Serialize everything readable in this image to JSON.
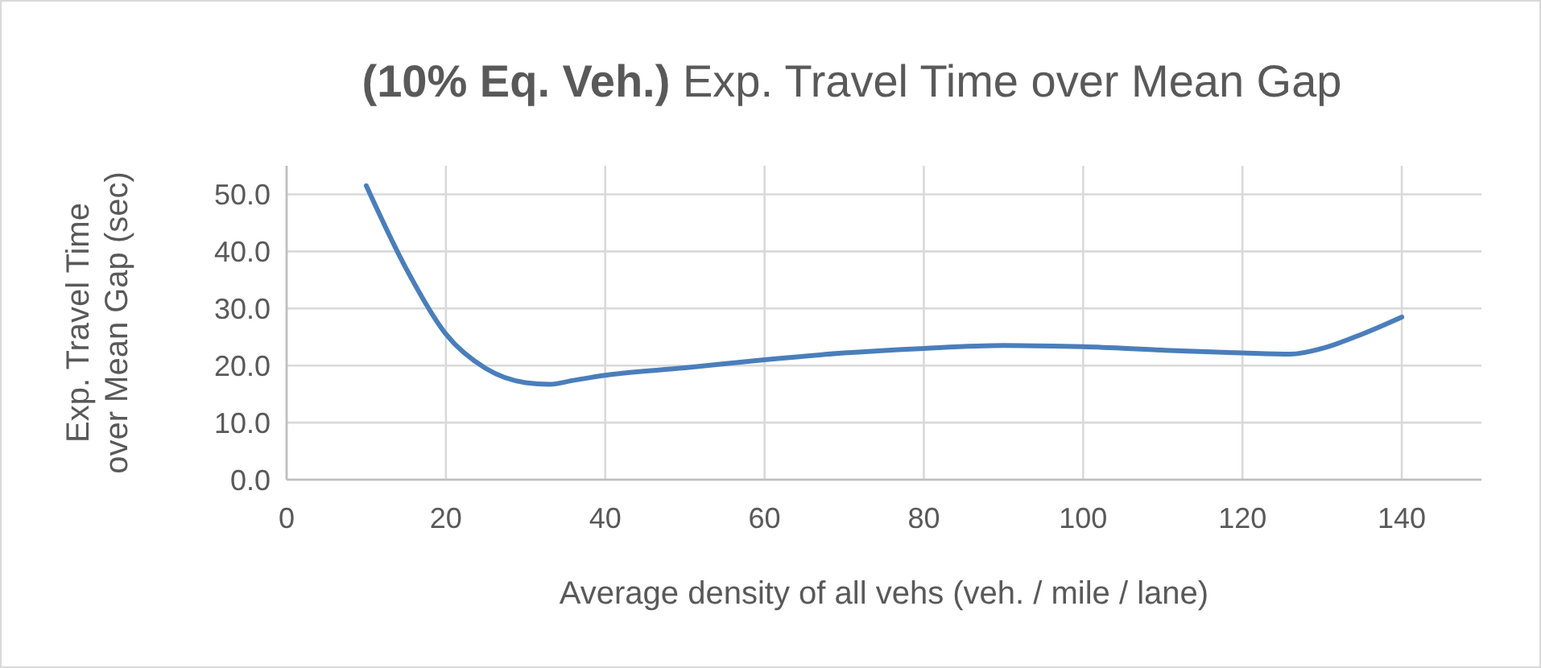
{
  "chart_data": {
    "type": "line",
    "title": "(10% Eq. Veh.) Exp. Travel Time over Mean Gap",
    "xlabel": "Average density of all vehs (veh. / mile / lane)",
    "ylabel": "Exp. Travel Time\nover Mean Gap (sec)",
    "series": [
      {
        "color": "#4a7ebb",
        "x": [
          10,
          15,
          20,
          25,
          30,
          33,
          36,
          40,
          50,
          60,
          70,
          80,
          90,
          100,
          110,
          120,
          126,
          130,
          135,
          140
        ],
        "values": [
          51.5,
          37,
          25.5,
          19.5,
          17,
          16.7,
          17.4,
          18.3,
          19.6,
          21,
          22.2,
          23,
          23.5,
          23.3,
          22.7,
          22.2,
          22,
          23,
          25.5,
          28.5
        ]
      }
    ],
    "xlim": [
      0,
      150
    ],
    "ylim": [
      0,
      55
    ],
    "xticks": [
      0,
      20,
      40,
      60,
      80,
      100,
      120,
      140
    ],
    "yticks": [
      {
        "value": 0,
        "label": "0.0"
      },
      {
        "value": 10,
        "label": "10.0"
      },
      {
        "value": 20,
        "label": "20.0"
      },
      {
        "value": 30,
        "label": "30.0"
      },
      {
        "value": 40,
        "label": "40.0"
      },
      {
        "value": 50,
        "label": "50.0"
      }
    ],
    "grid": true,
    "marker": "none",
    "line_style": "solid"
  }
}
